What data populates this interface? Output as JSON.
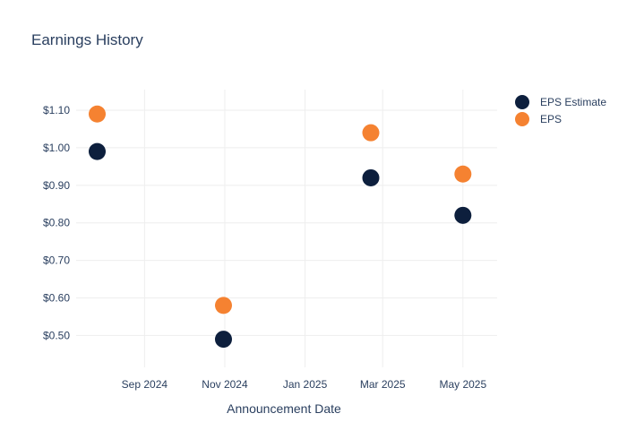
{
  "chart_data": {
    "type": "scatter",
    "title": "Earnings History",
    "xlabel": "Announcement Date",
    "ylabel": "",
    "x_ticks": [
      "Sep 2024",
      "Nov 2024",
      "Jan 2025",
      "Mar 2025",
      "May 2025"
    ],
    "y_ticks": [
      "$0.50",
      "$0.60",
      "$0.70",
      "$0.80",
      "$0.90",
      "$1.00",
      "$1.10"
    ],
    "xlim": [
      "2024-07-11",
      "2025-05-27"
    ],
    "ylim": [
      0.415,
      1.155
    ],
    "grid": true,
    "legend_position": "top-right",
    "series": [
      {
        "name": "EPS Estimate",
        "color": "#0d1f3d",
        "points": [
          {
            "x": "2024-07-27",
            "y": 0.99
          },
          {
            "x": "2024-10-31",
            "y": 0.49
          },
          {
            "x": "2025-02-20",
            "y": 0.92
          },
          {
            "x": "2025-05-01",
            "y": 0.82
          }
        ]
      },
      {
        "name": "EPS",
        "color": "#f58231",
        "points": [
          {
            "x": "2024-07-27",
            "y": 1.09
          },
          {
            "x": "2024-10-31",
            "y": 0.58
          },
          {
            "x": "2025-02-20",
            "y": 1.04
          },
          {
            "x": "2025-05-01",
            "y": 0.93
          }
        ]
      }
    ]
  }
}
